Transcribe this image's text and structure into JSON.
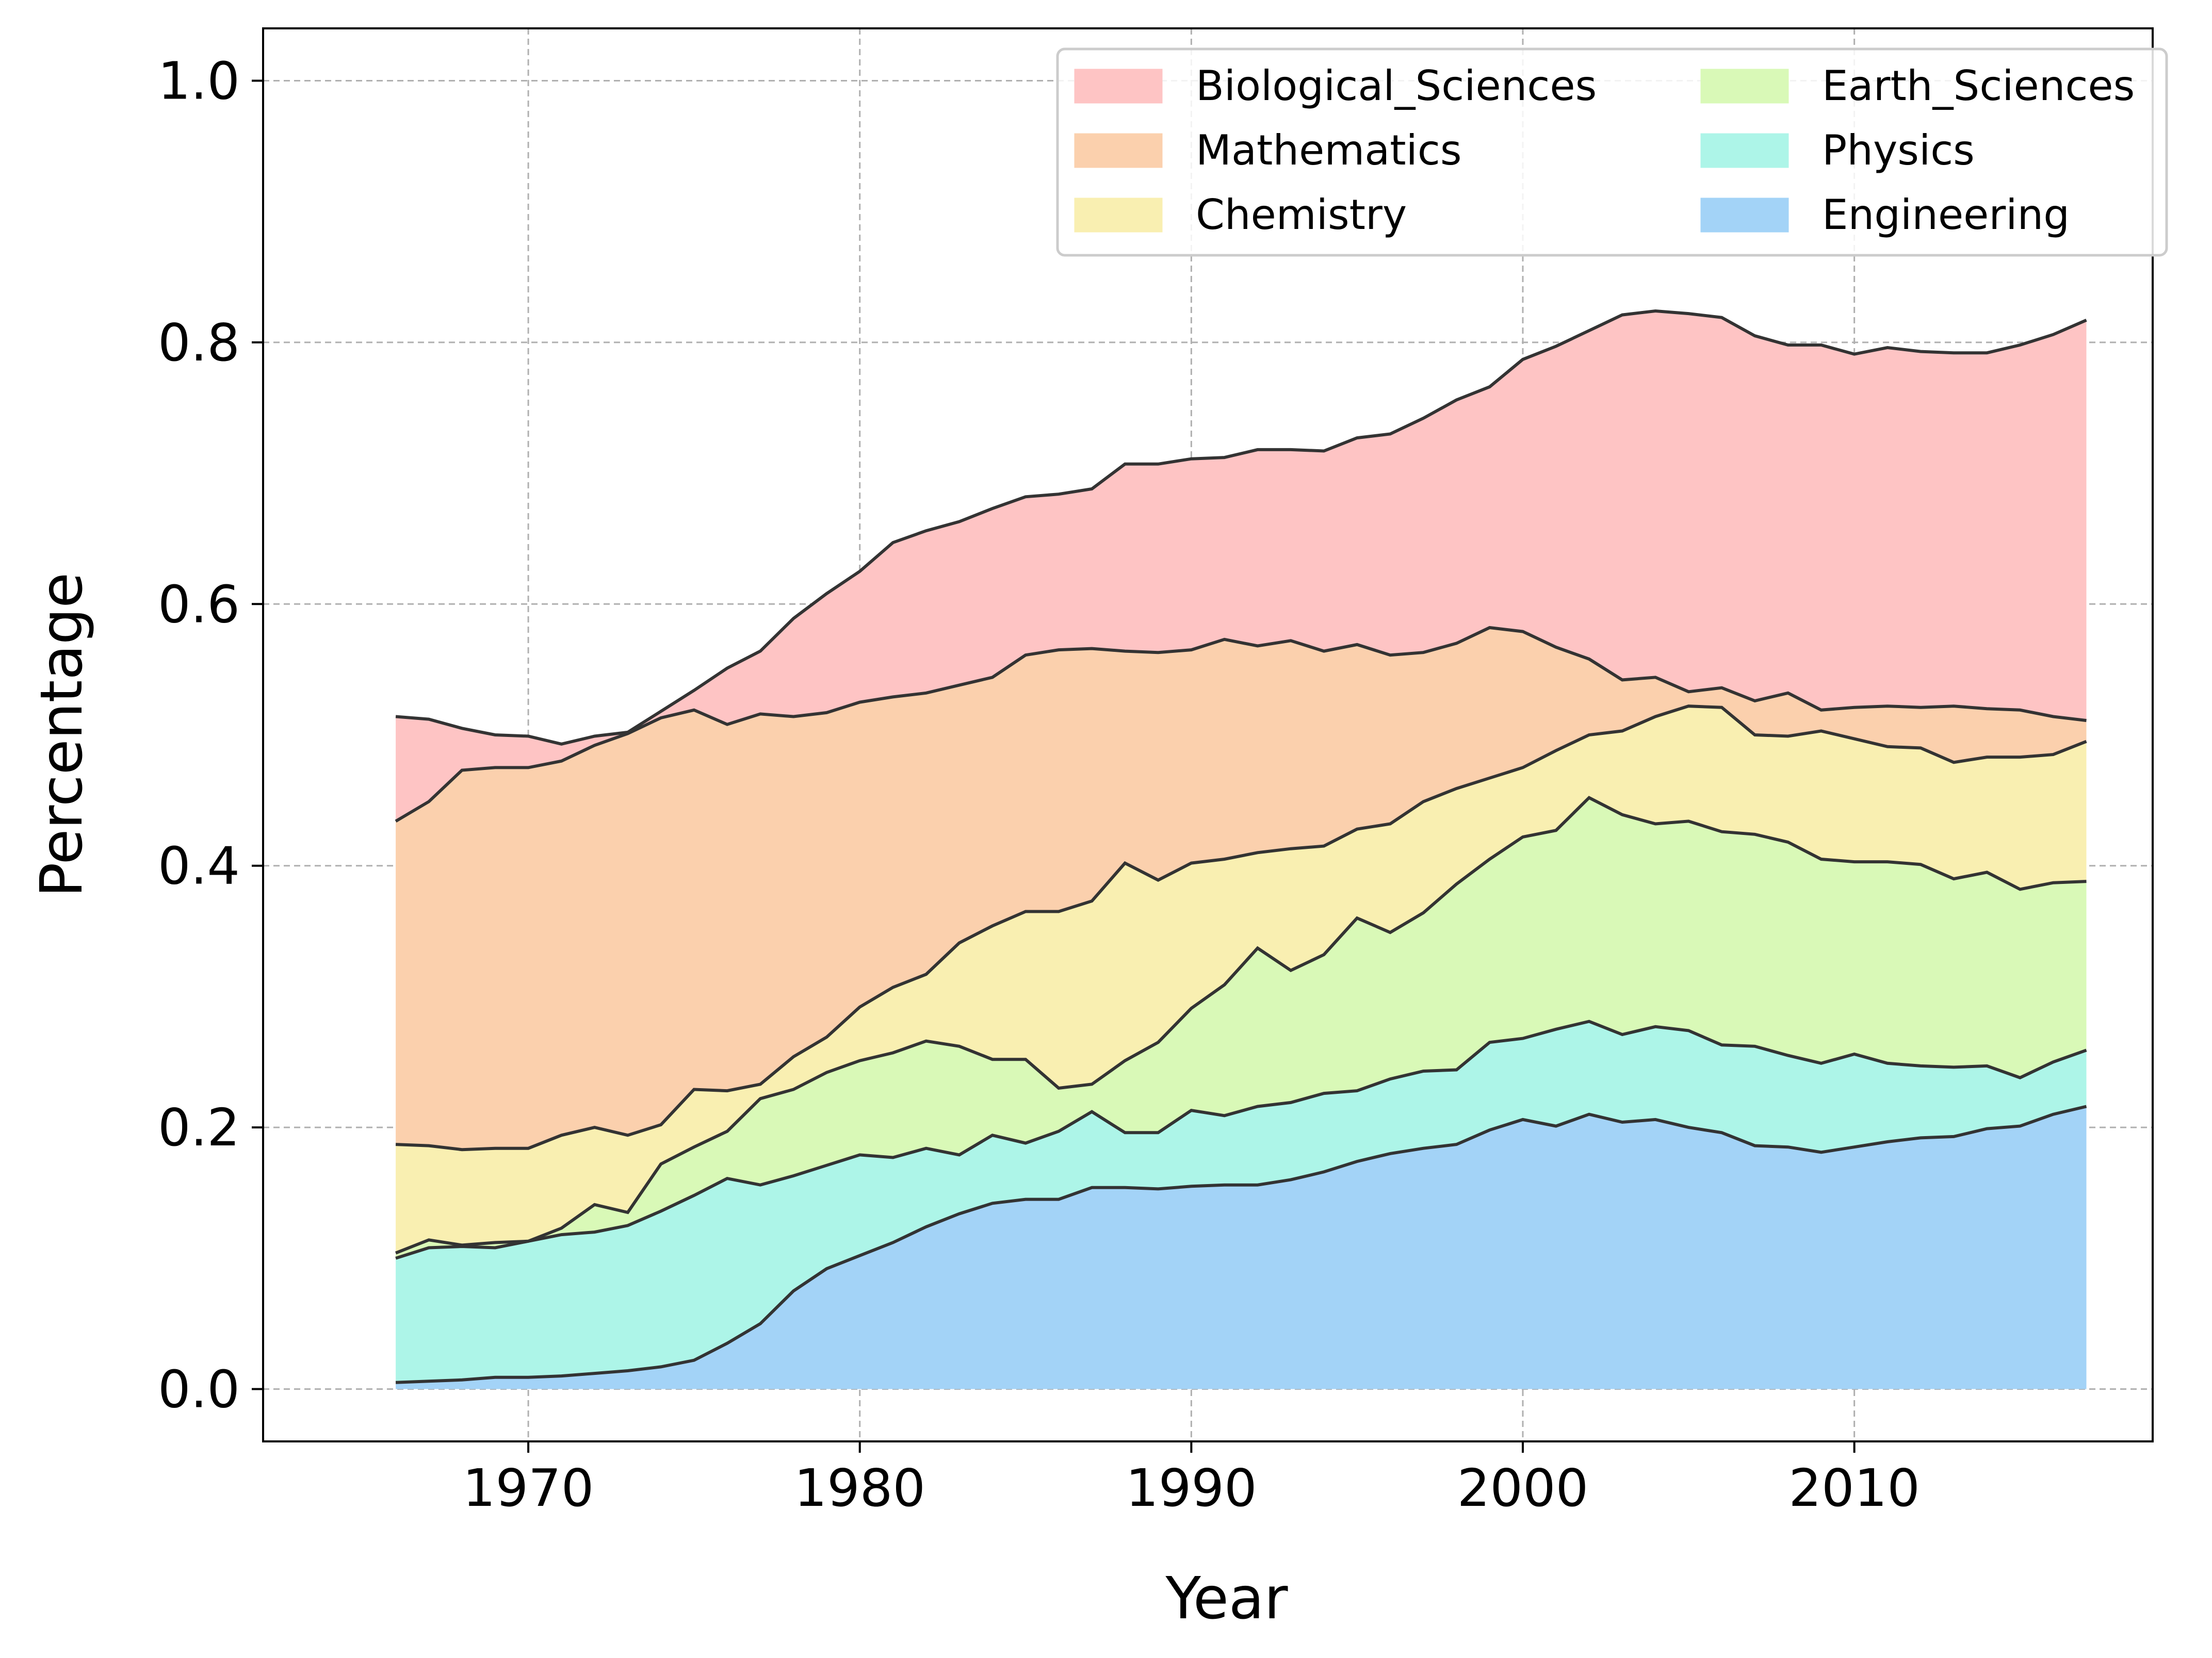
{
  "chart_data": {
    "type": "area",
    "stacked": true,
    "xlabel": "Year",
    "ylabel": "Percentage",
    "xlim": [
      1962,
      2019
    ],
    "ylim": [
      -0.04,
      1.04
    ],
    "x_ticks": [
      1970,
      1980,
      1990,
      2000,
      2010
    ],
    "y_ticks": [
      0.0,
      0.2,
      0.4,
      0.6,
      0.8,
      1.0
    ],
    "x_tick_labels": [
      "1970",
      "1980",
      "1990",
      "2000",
      "2010"
    ],
    "y_tick_labels": [
      "0.0",
      "0.2",
      "0.4",
      "0.6",
      "0.8",
      "1.0"
    ],
    "grid": true,
    "legend_position": "top-right",
    "legend_columns": 2,
    "x": [
      1966,
      1967,
      1968,
      1969,
      1970,
      1971,
      1972,
      1973,
      1974,
      1975,
      1976,
      1977,
      1978,
      1979,
      1980,
      1981,
      1982,
      1983,
      1984,
      1985,
      1986,
      1987,
      1988,
      1989,
      1990,
      1991,
      1992,
      1993,
      1994,
      1995,
      1996,
      1997,
      1998,
      1999,
      2000,
      2001,
      2002,
      2003,
      2004,
      2005,
      2006,
      2007,
      2008,
      2009,
      2010,
      2011,
      2012,
      2013,
      2014,
      2015,
      2016,
      2017
    ],
    "series": [
      {
        "name": "Engineering",
        "color": "#a3d3f7",
        "values": [
          0.005,
          0.006,
          0.007,
          0.009,
          0.009,
          0.01,
          0.012,
          0.014,
          0.017,
          0.022,
          0.035,
          0.05,
          0.075,
          0.092,
          0.102,
          0.112,
          0.124,
          0.134,
          0.142,
          0.145,
          0.145,
          0.154,
          0.154,
          0.153,
          0.155,
          0.156,
          0.156,
          0.16,
          0.166,
          0.174,
          0.18,
          0.184,
          0.187,
          0.198,
          0.206,
          0.201,
          0.21,
          0.204,
          0.206,
          0.2,
          0.196,
          0.186,
          0.185,
          0.181,
          0.185,
          0.189,
          0.192,
          0.193,
          0.199,
          0.201,
          0.21,
          0.216
        ]
      },
      {
        "name": "Physics",
        "color": "#adf5e8",
        "values": [
          0.095,
          0.102,
          0.102,
          0.099,
          0.104,
          0.108,
          0.108,
          0.111,
          0.119,
          0.126,
          0.126,
          0.106,
          0.088,
          0.079,
          0.077,
          0.065,
          0.06,
          0.045,
          0.052,
          0.043,
          0.052,
          0.058,
          0.042,
          0.043,
          0.058,
          0.053,
          0.06,
          0.059,
          0.06,
          0.054,
          0.057,
          0.059,
          0.057,
          0.067,
          0.062,
          0.074,
          0.071,
          0.067,
          0.071,
          0.074,
          0.067,
          0.076,
          0.07,
          0.068,
          0.071,
          0.06,
          0.055,
          0.053,
          0.048,
          0.037,
          0.04,
          0.043
        ]
      },
      {
        "name": "Earth_Sciences",
        "color": "#d9f9b7",
        "values": [
          0.004,
          0.006,
          0.001,
          0.004,
          0.0,
          0.005,
          0.021,
          0.01,
          0.036,
          0.037,
          0.036,
          0.066,
          0.066,
          0.071,
          0.072,
          0.08,
          0.082,
          0.083,
          0.058,
          0.064,
          0.033,
          0.021,
          0.055,
          0.069,
          0.078,
          0.1,
          0.121,
          0.101,
          0.106,
          0.132,
          0.112,
          0.121,
          0.142,
          0.14,
          0.154,
          0.152,
          0.171,
          0.168,
          0.155,
          0.16,
          0.163,
          0.162,
          0.163,
          0.156,
          0.147,
          0.154,
          0.154,
          0.144,
          0.148,
          0.144,
          0.137,
          0.129
        ]
      },
      {
        "name": "Chemistry",
        "color": "#f9efb1",
        "values": [
          0.083,
          0.072,
          0.073,
          0.072,
          0.071,
          0.071,
          0.059,
          0.059,
          0.03,
          0.044,
          0.031,
          0.011,
          0.025,
          0.027,
          0.041,
          0.05,
          0.051,
          0.079,
          0.102,
          0.113,
          0.135,
          0.14,
          0.151,
          0.124,
          0.111,
          0.096,
          0.073,
          0.093,
          0.083,
          0.068,
          0.083,
          0.085,
          0.073,
          0.062,
          0.053,
          0.061,
          0.048,
          0.064,
          0.082,
          0.088,
          0.095,
          0.076,
          0.081,
          0.098,
          0.094,
          0.088,
          0.089,
          0.089,
          0.088,
          0.101,
          0.098,
          0.107
        ]
      },
      {
        "name": "Mathematics",
        "color": "#fbd0ad",
        "values": [
          0.247,
          0.263,
          0.29,
          0.291,
          0.291,
          0.286,
          0.292,
          0.307,
          0.311,
          0.29,
          0.28,
          0.283,
          0.26,
          0.248,
          0.233,
          0.222,
          0.215,
          0.197,
          0.19,
          0.196,
          0.2,
          0.193,
          0.162,
          0.174,
          0.163,
          0.168,
          0.158,
          0.159,
          0.149,
          0.141,
          0.129,
          0.114,
          0.111,
          0.115,
          0.104,
          0.079,
          0.058,
          0.039,
          0.03,
          0.011,
          0.015,
          0.026,
          0.033,
          0.016,
          0.024,
          0.031,
          0.031,
          0.043,
          0.037,
          0.036,
          0.029,
          0.016
        ]
      },
      {
        "name": "Biological_Sciences",
        "color": "#fec4c4",
        "values": [
          0.08,
          0.063,
          0.032,
          0.025,
          0.024,
          0.013,
          0.007,
          0.001,
          0.005,
          0.015,
          0.043,
          0.048,
          0.075,
          0.091,
          0.1,
          0.118,
          0.124,
          0.125,
          0.129,
          0.121,
          0.119,
          0.122,
          0.143,
          0.144,
          0.146,
          0.139,
          0.15,
          0.146,
          0.153,
          0.158,
          0.169,
          0.179,
          0.186,
          0.184,
          0.208,
          0.23,
          0.251,
          0.279,
          0.28,
          0.289,
          0.283,
          0.279,
          0.266,
          0.279,
          0.27,
          0.274,
          0.272,
          0.27,
          0.272,
          0.279,
          0.292,
          0.306
        ]
      }
    ]
  }
}
